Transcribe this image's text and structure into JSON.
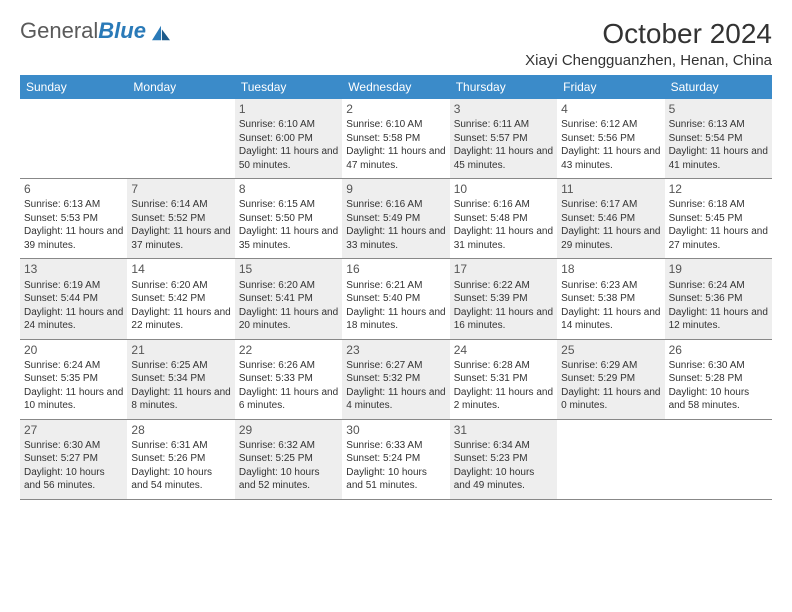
{
  "logo": {
    "word1": "General",
    "word2": "Blue"
  },
  "title": "October 2024",
  "location": "Xiayi Chengguanzhen, Henan, China",
  "colors": {
    "header_bg": "#3b8bc9",
    "header_text": "#ffffff",
    "shade_bg": "#eeeeee",
    "border": "#888888",
    "text": "#333333"
  },
  "day_names": [
    "Sunday",
    "Monday",
    "Tuesday",
    "Wednesday",
    "Thursday",
    "Friday",
    "Saturday"
  ],
  "weeks": [
    [
      {
        "day": "",
        "sunrise": "",
        "sunset": "",
        "daylight": "",
        "shaded": false,
        "empty": true
      },
      {
        "day": "",
        "sunrise": "",
        "sunset": "",
        "daylight": "",
        "shaded": false,
        "empty": true
      },
      {
        "day": "1",
        "sunrise": "Sunrise: 6:10 AM",
        "sunset": "Sunset: 6:00 PM",
        "daylight": "Daylight: 11 hours and 50 minutes.",
        "shaded": true
      },
      {
        "day": "2",
        "sunrise": "Sunrise: 6:10 AM",
        "sunset": "Sunset: 5:58 PM",
        "daylight": "Daylight: 11 hours and 47 minutes.",
        "shaded": false
      },
      {
        "day": "3",
        "sunrise": "Sunrise: 6:11 AM",
        "sunset": "Sunset: 5:57 PM",
        "daylight": "Daylight: 11 hours and 45 minutes.",
        "shaded": true
      },
      {
        "day": "4",
        "sunrise": "Sunrise: 6:12 AM",
        "sunset": "Sunset: 5:56 PM",
        "daylight": "Daylight: 11 hours and 43 minutes.",
        "shaded": false
      },
      {
        "day": "5",
        "sunrise": "Sunrise: 6:13 AM",
        "sunset": "Sunset: 5:54 PM",
        "daylight": "Daylight: 11 hours and 41 minutes.",
        "shaded": true
      }
    ],
    [
      {
        "day": "6",
        "sunrise": "Sunrise: 6:13 AM",
        "sunset": "Sunset: 5:53 PM",
        "daylight": "Daylight: 11 hours and 39 minutes.",
        "shaded": false
      },
      {
        "day": "7",
        "sunrise": "Sunrise: 6:14 AM",
        "sunset": "Sunset: 5:52 PM",
        "daylight": "Daylight: 11 hours and 37 minutes.",
        "shaded": true
      },
      {
        "day": "8",
        "sunrise": "Sunrise: 6:15 AM",
        "sunset": "Sunset: 5:50 PM",
        "daylight": "Daylight: 11 hours and 35 minutes.",
        "shaded": false
      },
      {
        "day": "9",
        "sunrise": "Sunrise: 6:16 AM",
        "sunset": "Sunset: 5:49 PM",
        "daylight": "Daylight: 11 hours and 33 minutes.",
        "shaded": true
      },
      {
        "day": "10",
        "sunrise": "Sunrise: 6:16 AM",
        "sunset": "Sunset: 5:48 PM",
        "daylight": "Daylight: 11 hours and 31 minutes.",
        "shaded": false
      },
      {
        "day": "11",
        "sunrise": "Sunrise: 6:17 AM",
        "sunset": "Sunset: 5:46 PM",
        "daylight": "Daylight: 11 hours and 29 minutes.",
        "shaded": true
      },
      {
        "day": "12",
        "sunrise": "Sunrise: 6:18 AM",
        "sunset": "Sunset: 5:45 PM",
        "daylight": "Daylight: 11 hours and 27 minutes.",
        "shaded": false
      }
    ],
    [
      {
        "day": "13",
        "sunrise": "Sunrise: 6:19 AM",
        "sunset": "Sunset: 5:44 PM",
        "daylight": "Daylight: 11 hours and 24 minutes.",
        "shaded": true
      },
      {
        "day": "14",
        "sunrise": "Sunrise: 6:20 AM",
        "sunset": "Sunset: 5:42 PM",
        "daylight": "Daylight: 11 hours and 22 minutes.",
        "shaded": false
      },
      {
        "day": "15",
        "sunrise": "Sunrise: 6:20 AM",
        "sunset": "Sunset: 5:41 PM",
        "daylight": "Daylight: 11 hours and 20 minutes.",
        "shaded": true
      },
      {
        "day": "16",
        "sunrise": "Sunrise: 6:21 AM",
        "sunset": "Sunset: 5:40 PM",
        "daylight": "Daylight: 11 hours and 18 minutes.",
        "shaded": false
      },
      {
        "day": "17",
        "sunrise": "Sunrise: 6:22 AM",
        "sunset": "Sunset: 5:39 PM",
        "daylight": "Daylight: 11 hours and 16 minutes.",
        "shaded": true
      },
      {
        "day": "18",
        "sunrise": "Sunrise: 6:23 AM",
        "sunset": "Sunset: 5:38 PM",
        "daylight": "Daylight: 11 hours and 14 minutes.",
        "shaded": false
      },
      {
        "day": "19",
        "sunrise": "Sunrise: 6:24 AM",
        "sunset": "Sunset: 5:36 PM",
        "daylight": "Daylight: 11 hours and 12 minutes.",
        "shaded": true
      }
    ],
    [
      {
        "day": "20",
        "sunrise": "Sunrise: 6:24 AM",
        "sunset": "Sunset: 5:35 PM",
        "daylight": "Daylight: 11 hours and 10 minutes.",
        "shaded": false
      },
      {
        "day": "21",
        "sunrise": "Sunrise: 6:25 AM",
        "sunset": "Sunset: 5:34 PM",
        "daylight": "Daylight: 11 hours and 8 minutes.",
        "shaded": true
      },
      {
        "day": "22",
        "sunrise": "Sunrise: 6:26 AM",
        "sunset": "Sunset: 5:33 PM",
        "daylight": "Daylight: 11 hours and 6 minutes.",
        "shaded": false
      },
      {
        "day": "23",
        "sunrise": "Sunrise: 6:27 AM",
        "sunset": "Sunset: 5:32 PM",
        "daylight": "Daylight: 11 hours and 4 minutes.",
        "shaded": true
      },
      {
        "day": "24",
        "sunrise": "Sunrise: 6:28 AM",
        "sunset": "Sunset: 5:31 PM",
        "daylight": "Daylight: 11 hours and 2 minutes.",
        "shaded": false
      },
      {
        "day": "25",
        "sunrise": "Sunrise: 6:29 AM",
        "sunset": "Sunset: 5:29 PM",
        "daylight": "Daylight: 11 hours and 0 minutes.",
        "shaded": true
      },
      {
        "day": "26",
        "sunrise": "Sunrise: 6:30 AM",
        "sunset": "Sunset: 5:28 PM",
        "daylight": "Daylight: 10 hours and 58 minutes.",
        "shaded": false
      }
    ],
    [
      {
        "day": "27",
        "sunrise": "Sunrise: 6:30 AM",
        "sunset": "Sunset: 5:27 PM",
        "daylight": "Daylight: 10 hours and 56 minutes.",
        "shaded": true
      },
      {
        "day": "28",
        "sunrise": "Sunrise: 6:31 AM",
        "sunset": "Sunset: 5:26 PM",
        "daylight": "Daylight: 10 hours and 54 minutes.",
        "shaded": false
      },
      {
        "day": "29",
        "sunrise": "Sunrise: 6:32 AM",
        "sunset": "Sunset: 5:25 PM",
        "daylight": "Daylight: 10 hours and 52 minutes.",
        "shaded": true
      },
      {
        "day": "30",
        "sunrise": "Sunrise: 6:33 AM",
        "sunset": "Sunset: 5:24 PM",
        "daylight": "Daylight: 10 hours and 51 minutes.",
        "shaded": false
      },
      {
        "day": "31",
        "sunrise": "Sunrise: 6:34 AM",
        "sunset": "Sunset: 5:23 PM",
        "daylight": "Daylight: 10 hours and 49 minutes.",
        "shaded": true
      },
      {
        "day": "",
        "sunrise": "",
        "sunset": "",
        "daylight": "",
        "shaded": false,
        "empty": true
      },
      {
        "day": "",
        "sunrise": "",
        "sunset": "",
        "daylight": "",
        "shaded": false,
        "empty": true
      }
    ]
  ]
}
